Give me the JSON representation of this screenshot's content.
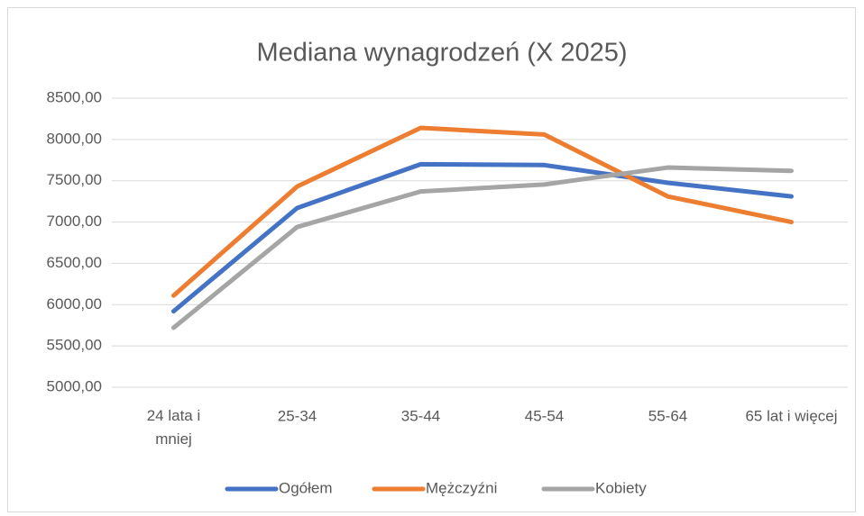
{
  "chart_data": {
    "type": "line",
    "title": "Mediana wynagrodzeń (X 2025)",
    "categories": [
      "24 lata i mniej",
      "25-34",
      "35-44",
      "45-54",
      "55-64",
      "65 lat i więcej"
    ],
    "series": [
      {
        "name": "Ogółem",
        "color": "#4472c4",
        "values": [
          5920,
          7170,
          7700,
          7690,
          7475,
          7310
        ]
      },
      {
        "name": "Mężczyźni",
        "color": "#ed7d31",
        "values": [
          6110,
          7430,
          8140,
          8060,
          7310,
          7000
        ]
      },
      {
        "name": "Kobiety",
        "color": "#a5a5a5",
        "values": [
          5720,
          6940,
          7370,
          7455,
          7660,
          7620
        ]
      }
    ],
    "ylim": [
      5000,
      8500
    ],
    "yticks": [
      {
        "value": 5000,
        "label": "5000,00"
      },
      {
        "value": 5500,
        "label": "5500,00"
      },
      {
        "value": 6000,
        "label": "6000,00"
      },
      {
        "value": 6500,
        "label": "6500,00"
      },
      {
        "value": 7000,
        "label": "7000,00"
      },
      {
        "value": 7500,
        "label": "7500,00"
      },
      {
        "value": 8000,
        "label": "8000,00"
      },
      {
        "value": 8500,
        "label": "8500,00"
      }
    ],
    "grid": true,
    "legend": "bottom"
  }
}
